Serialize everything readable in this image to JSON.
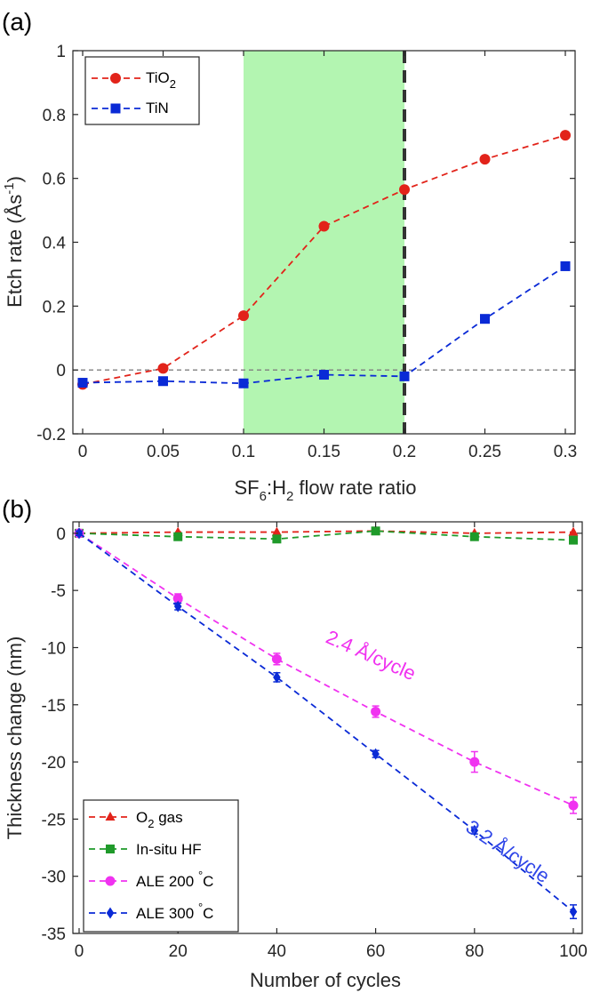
{
  "chart_data": [
    {
      "panel_label": "(a)",
      "type": "line",
      "xlabel": {
        "main": "SF",
        "sub1": "6",
        "mid": ":H",
        "sub2": "2",
        "tail": " flow rate ratio"
      },
      "ylabel": {
        "main": "Etch rate (Ås",
        "sup": "-1",
        "tail": ")"
      },
      "xlim": [
        0,
        0.3
      ],
      "ylim": [
        -0.2,
        1
      ],
      "xticks": [
        "0",
        "0.05",
        "0.1",
        "0.15",
        "0.2",
        "0.25",
        "0.3"
      ],
      "xtick_values": [
        0,
        0.05,
        0.1,
        0.15,
        0.2,
        0.25,
        0.3
      ],
      "yticks": [
        "-0.2",
        "0",
        "0.2",
        "0.4",
        "0.6",
        "0.8",
        "1"
      ],
      "ytick_values": [
        -0.2,
        0,
        0.2,
        0.4,
        0.6,
        0.8,
        1
      ],
      "shaded_region": {
        "x": [
          0.1,
          0.2
        ],
        "color": "#b3f5b1"
      },
      "vertical_line": {
        "x": 0.2,
        "style": "dashed",
        "color": "#333333"
      },
      "reference_line": {
        "y": 0,
        "style": "dashed",
        "color": "#808080"
      },
      "legend_position": "top-left",
      "grid": false,
      "series": [
        {
          "name": {
            "main": "TiO",
            "sub": "2"
          },
          "marker": "circle",
          "color": "#e2231a",
          "x": [
            0,
            0.05,
            0.1,
            0.15,
            0.2,
            0.25,
            0.3
          ],
          "y": [
            -0.045,
            0.005,
            0.17,
            0.45,
            0.565,
            0.66,
            0.735
          ]
        },
        {
          "name": {
            "main": "TiN"
          },
          "marker": "square",
          "color": "#0a2ad6",
          "x": [
            0,
            0.05,
            0.1,
            0.15,
            0.2,
            0.25,
            0.3
          ],
          "y": [
            -0.04,
            -0.035,
            -0.042,
            -0.015,
            -0.02,
            0.16,
            0.325
          ]
        }
      ]
    },
    {
      "panel_label": "(b)",
      "type": "line",
      "xlabel": {
        "main": "Number of cycles"
      },
      "ylabel": {
        "main": "Thickness change (nm)"
      },
      "xlim": [
        0,
        100
      ],
      "ylim": [
        -35,
        1
      ],
      "xticks": [
        "0",
        "20",
        "40",
        "60",
        "80",
        "100"
      ],
      "xtick_values": [
        0,
        20,
        40,
        60,
        80,
        100
      ],
      "yticks": [
        "-35",
        "-30",
        "-25",
        "-20",
        "-15",
        "-10",
        "-5",
        "0"
      ],
      "ytick_values": [
        -35,
        -30,
        -25,
        -20,
        -15,
        -10,
        -5,
        0
      ],
      "legend_position": "bottom-left",
      "grid": false,
      "annotations": [
        {
          "text": "2.4 Å/cycle",
          "x": 58.5,
          "y": -11.2,
          "angle": 24,
          "color": "#f032f0"
        },
        {
          "text": "3.2 Å/cycle",
          "x": 86,
          "y": -28.3,
          "angle": 34,
          "color": "#2f46e8"
        }
      ],
      "series": [
        {
          "name": {
            "main": "O",
            "sub": "2",
            "tail": " gas"
          },
          "marker": "triangle",
          "color": "#e2231a",
          "x": [
            0,
            20,
            40,
            60,
            80,
            100
          ],
          "y": [
            0,
            0.1,
            0.1,
            0.2,
            0.0,
            0.1
          ]
        },
        {
          "name": {
            "main": "In-situ HF"
          },
          "marker": "square",
          "color": "#1f9a2a",
          "x": [
            0,
            20,
            40,
            60,
            80,
            100
          ],
          "y": [
            0,
            -0.3,
            -0.5,
            0.2,
            -0.3,
            -0.6
          ]
        },
        {
          "name": {
            "main": "ALE 200 ",
            "sup": "°",
            "tail": "C"
          },
          "marker": "circle",
          "color": "#f032f0",
          "x": [
            0,
            20,
            40,
            60,
            80,
            100
          ],
          "y": [
            0,
            -5.7,
            -11.0,
            -15.6,
            -20.0,
            -23.8
          ],
          "err": [
            0.3,
            0.4,
            0.5,
            0.5,
            0.9,
            0.7
          ]
        },
        {
          "name": {
            "main": "ALE 300 ",
            "sup": "°",
            "tail": "C"
          },
          "marker": "diamond",
          "color": "#0a2ad6",
          "x": [
            0,
            20,
            40,
            60,
            80,
            100
          ],
          "y": [
            0,
            -6.4,
            -12.6,
            -19.3,
            -26.0,
            -33.1
          ],
          "err": [
            0.2,
            0.3,
            0.4,
            0.3,
            0.3,
            0.6
          ]
        }
      ]
    }
  ]
}
